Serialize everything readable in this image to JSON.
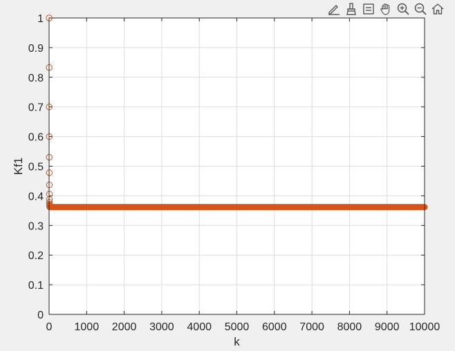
{
  "toolbar": {
    "buttons": [
      {
        "name": "edit-plot-icon"
      },
      {
        "name": "brush-icon"
      },
      {
        "name": "data-tips-icon"
      },
      {
        "name": "pan-icon"
      },
      {
        "name": "zoom-in-icon"
      },
      {
        "name": "zoom-out-icon"
      },
      {
        "name": "restore-view-icon"
      }
    ]
  },
  "colors": {
    "background": "#f0f0f0",
    "axes_bg": "#ffffff",
    "grid": "#dcdcdc",
    "series": "#d95319"
  },
  "chart_data": {
    "type": "scatter",
    "xlabel": "k",
    "ylabel": "Kf1",
    "xlim": [
      0,
      10000
    ],
    "ylim": [
      0,
      1
    ],
    "xticks": [
      0,
      1000,
      2000,
      3000,
      4000,
      5000,
      6000,
      7000,
      8000,
      9000,
      10000
    ],
    "yticks": [
      0,
      0.1,
      0.2,
      0.3,
      0.4,
      0.5,
      0.6,
      0.7,
      0.8,
      0.9,
      1
    ],
    "grid": true,
    "marker": "circle",
    "series": [
      {
        "x": [
          1,
          2,
          3,
          4,
          5,
          6,
          7,
          8,
          9,
          10,
          11,
          12,
          13,
          14,
          15
        ],
        "values": [
          1.0,
          0.833,
          0.7,
          0.6,
          0.53,
          0.478,
          0.437,
          0.406,
          0.388,
          0.378,
          0.372,
          0.368,
          0.366,
          0.365,
          0.364
        ]
      }
    ],
    "steady_state": {
      "x_start": 16,
      "x_end": 10000,
      "value": 0.362
    }
  }
}
